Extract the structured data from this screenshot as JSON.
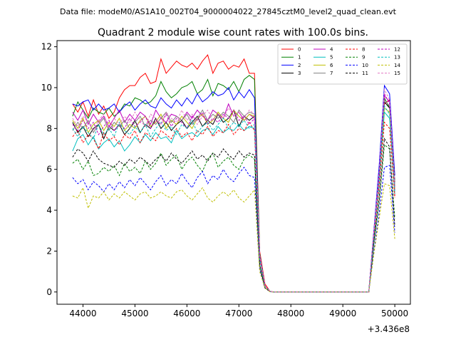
{
  "header": {
    "data_file": "Data file: modeM0/AS1A10_002T04_9000004022_27845cztM0_level2_quad_clean.evt"
  },
  "chart_data": {
    "type": "line",
    "title": "Quadrant 2 module wise count rates with 100.0s bins.",
    "xlabel": "",
    "ylabel": "",
    "offset_label": "+3.436e8",
    "xlim": [
      43500,
      50300
    ],
    "ylim": [
      -0.6,
      12.3
    ],
    "xticks": [
      44000,
      45000,
      46000,
      47000,
      48000,
      49000,
      50000
    ],
    "xtick_labels": [
      "44000",
      "45000",
      "46000",
      "47000",
      "48000",
      "49000",
      "50000"
    ],
    "yticks": [
      0,
      2,
      4,
      6,
      8,
      10,
      12
    ],
    "ytick_labels": [
      "0",
      "2",
      "4",
      "6",
      "8",
      "10",
      "12"
    ],
    "legend_position": "upper-right",
    "x": [
      43800,
      43900,
      44000,
      44100,
      44200,
      44300,
      44400,
      44500,
      44600,
      44700,
      44800,
      44900,
      45000,
      45100,
      45200,
      45300,
      45400,
      45500,
      45600,
      45700,
      45800,
      45900,
      46000,
      46100,
      46200,
      46300,
      46400,
      46500,
      46600,
      46700,
      46800,
      46900,
      47000,
      47100,
      47200,
      47300,
      47400,
      47500,
      47600,
      47700,
      47800,
      47900,
      48000,
      48100,
      48200,
      48300,
      48400,
      48500,
      48600,
      48700,
      48800,
      48900,
      49000,
      49100,
      49200,
      49300,
      49400,
      49500,
      49600,
      49700,
      49800,
      49900,
      50000
    ],
    "series": [
      {
        "name": "0",
        "color": "#ff0000",
        "dash": false,
        "values": [
          9.2,
          8.8,
          9.3,
          8.6,
          9.4,
          8.7,
          9.1,
          8.5,
          8.8,
          9.5,
          9.9,
          10.1,
          10.1,
          10.5,
          10.7,
          10.2,
          10.3,
          11.4,
          10.7,
          11.0,
          11.3,
          11.1,
          11.0,
          11.2,
          10.9,
          11.3,
          11.6,
          10.7,
          11.2,
          11.3,
          10.9,
          11.1,
          11.0,
          11.4,
          10.7,
          10.7,
          2.0,
          0.4,
          0.02,
          0.0,
          0.0,
          0.0,
          0.0,
          0.0,
          0.0,
          0.0,
          0.0,
          0.0,
          0.0,
          0.0,
          0.0,
          0.0,
          0.0,
          0.0,
          0.0,
          0.0,
          0.0,
          0.0,
          3.0,
          6.0,
          9.2,
          9.4,
          4.7
        ]
      },
      {
        "name": "1",
        "color": "#008000",
        "dash": false,
        "values": [
          8.6,
          9.3,
          8.9,
          8.5,
          9.0,
          8.8,
          8.7,
          9.0,
          8.6,
          8.8,
          9.2,
          9.1,
          9.5,
          9.4,
          9.2,
          9.3,
          9.6,
          10.3,
          9.8,
          9.5,
          9.7,
          10.0,
          10.1,
          10.3,
          9.7,
          9.9,
          10.4,
          9.6,
          10.2,
          10.1,
          9.9,
          10.3,
          9.8,
          10.4,
          10.6,
          10.4,
          1.9,
          0.3,
          0.02,
          0.0,
          0.0,
          0.0,
          0.0,
          0.0,
          0.0,
          0.0,
          0.0,
          0.0,
          0.0,
          0.0,
          0.0,
          0.0,
          0.0,
          0.0,
          0.0,
          0.0,
          0.0,
          0.0,
          2.9,
          5.6,
          9.5,
          9.0,
          5.3
        ]
      },
      {
        "name": "2",
        "color": "#0000ff",
        "dash": false,
        "values": [
          9.2,
          9.1,
          9.3,
          9.4,
          8.9,
          9.2,
          8.9,
          9.0,
          9.2,
          8.8,
          9.1,
          9.3,
          8.9,
          9.2,
          9.4,
          9.1,
          9.0,
          9.5,
          9.2,
          9.0,
          9.4,
          9.1,
          9.5,
          9.2,
          9.7,
          9.3,
          9.5,
          9.8,
          9.6,
          9.7,
          10.0,
          9.4,
          9.8,
          9.5,
          9.9,
          9.5,
          1.8,
          0.3,
          0.02,
          0.0,
          0.0,
          0.0,
          0.0,
          0.0,
          0.0,
          0.0,
          0.0,
          0.0,
          0.0,
          0.0,
          0.0,
          0.0,
          0.0,
          0.0,
          0.0,
          0.0,
          0.0,
          0.0,
          3.1,
          6.2,
          10.1,
          9.7,
          5.7
        ]
      },
      {
        "name": "3",
        "color": "#000000",
        "dash": false,
        "values": [
          8.3,
          7.8,
          8.1,
          7.6,
          8.0,
          8.2,
          7.5,
          8.1,
          7.9,
          8.2,
          7.7,
          8.0,
          8.4,
          7.8,
          8.2,
          8.0,
          8.5,
          8.0,
          8.3,
          7.9,
          8.2,
          8.4,
          8.0,
          8.3,
          8.6,
          8.1,
          8.4,
          8.2,
          8.7,
          8.3,
          8.5,
          8.9,
          8.1,
          8.6,
          8.4,
          8.6,
          1.7,
          0.3,
          0.02,
          0.0,
          0.0,
          0.0,
          0.0,
          0.0,
          0.0,
          0.0,
          0.0,
          0.0,
          0.0,
          0.0,
          0.0,
          0.0,
          0.0,
          0.0,
          0.0,
          0.0,
          0.0,
          0.0,
          2.9,
          5.4,
          9.3,
          9.0,
          5.4
        ]
      },
      {
        "name": "4",
        "color": "#bf00bf",
        "dash": false,
        "values": [
          8.8,
          8.4,
          8.9,
          8.2,
          8.7,
          8.3,
          8.6,
          8.1,
          8.5,
          8.9,
          8.3,
          8.7,
          8.4,
          8.8,
          8.6,
          8.2,
          8.9,
          8.5,
          8.3,
          8.7,
          8.6,
          8.4,
          8.8,
          8.5,
          8.9,
          8.6,
          8.4,
          8.9,
          8.7,
          8.5,
          9.2,
          8.6,
          8.8,
          8.4,
          8.7,
          8.5,
          1.8,
          0.3,
          0.02,
          0.0,
          0.0,
          0.0,
          0.0,
          0.0,
          0.0,
          0.0,
          0.0,
          0.0,
          0.0,
          0.0,
          0.0,
          0.0,
          0.0,
          0.0,
          0.0,
          0.0,
          0.0,
          0.0,
          3.0,
          5.8,
          9.6,
          9.3,
          5.1
        ]
      },
      {
        "name": "5",
        "color": "#00bfbf",
        "dash": false,
        "values": [
          6.9,
          7.5,
          7.7,
          7.2,
          7.6,
          7.0,
          7.3,
          7.5,
          7.1,
          7.4,
          6.9,
          7.2,
          7.6,
          7.3,
          7.7,
          7.4,
          7.8,
          7.5,
          7.6,
          7.3,
          7.9,
          7.5,
          7.7,
          7.8,
          7.6,
          7.9,
          8.0,
          7.7,
          8.1,
          7.8,
          8.0,
          7.9,
          8.2,
          7.9,
          8.1,
          8.0,
          1.6,
          0.3,
          0.02,
          0.0,
          0.0,
          0.0,
          0.0,
          0.0,
          0.0,
          0.0,
          0.0,
          0.0,
          0.0,
          0.0,
          0.0,
          0.0,
          0.0,
          0.0,
          0.0,
          0.0,
          0.0,
          0.0,
          2.7,
          5.3,
          8.8,
          8.5,
          4.9
        ]
      },
      {
        "name": "6",
        "color": "#bfbf00",
        "dash": false,
        "values": [
          8.4,
          8.0,
          8.5,
          7.8,
          8.2,
          8.4,
          7.9,
          8.3,
          8.1,
          8.5,
          7.9,
          8.2,
          8.0,
          8.4,
          8.6,
          8.1,
          8.3,
          8.7,
          8.0,
          8.4,
          8.2,
          8.6,
          8.3,
          8.0,
          8.5,
          8.7,
          8.2,
          8.4,
          8.8,
          8.5,
          8.3,
          8.9,
          8.6,
          8.4,
          8.7,
          8.6,
          1.7,
          0.3,
          0.02,
          0.0,
          0.0,
          0.0,
          0.0,
          0.0,
          0.0,
          0.0,
          0.0,
          0.0,
          0.0,
          0.0,
          0.0,
          0.0,
          0.0,
          0.0,
          0.0,
          0.0,
          0.0,
          0.0,
          2.8,
          5.5,
          9.0,
          8.8,
          5.0
        ]
      },
      {
        "name": "7",
        "color": "#808080",
        "dash": false,
        "values": [
          7.9,
          8.3,
          8.0,
          8.4,
          7.8,
          8.2,
          8.5,
          7.9,
          8.3,
          8.1,
          8.4,
          8.0,
          8.3,
          8.6,
          8.1,
          8.4,
          8.2,
          8.5,
          8.8,
          8.3,
          8.6,
          8.4,
          8.7,
          8.2,
          8.5,
          8.9,
          8.4,
          8.7,
          8.5,
          8.8,
          8.6,
          8.3,
          8.9,
          8.6,
          8.8,
          8.7,
          1.7,
          0.3,
          0.02,
          0.0,
          0.0,
          0.0,
          0.0,
          0.0,
          0.0,
          0.0,
          0.0,
          0.0,
          0.0,
          0.0,
          0.0,
          0.0,
          0.0,
          0.0,
          0.0,
          0.0,
          0.0,
          0.0,
          2.8,
          5.6,
          9.4,
          9.1,
          5.2
        ]
      },
      {
        "name": "8",
        "color": "#ff0000",
        "dash": true,
        "values": [
          7.6,
          7.9,
          7.3,
          7.7,
          7.5,
          7.0,
          7.8,
          7.4,
          7.6,
          7.2,
          7.7,
          7.5,
          7.9,
          7.3,
          7.8,
          7.6,
          7.4,
          7.9,
          7.7,
          7.5,
          8.0,
          7.6,
          7.8,
          7.4,
          7.9,
          7.7,
          8.1,
          7.6,
          7.9,
          7.8,
          8.2,
          7.7,
          8.0,
          7.9,
          8.3,
          7.9,
          1.6,
          0.3,
          0.02,
          0.0,
          0.0,
          0.0,
          0.0,
          0.0,
          0.0,
          0.0,
          0.0,
          0.0,
          0.0,
          0.0,
          0.0,
          0.0,
          0.0,
          0.0,
          0.0,
          0.0,
          0.0,
          0.0,
          2.7,
          5.2,
          8.3,
          8.0,
          4.6
        ]
      },
      {
        "name": "9",
        "color": "#008000",
        "dash": true,
        "values": [
          6.3,
          6.5,
          6.0,
          6.4,
          5.7,
          5.8,
          6.1,
          5.9,
          6.2,
          5.7,
          6.3,
          5.9,
          6.1,
          5.8,
          6.4,
          6.0,
          6.3,
          6.8,
          6.2,
          6.5,
          6.7,
          6.0,
          6.4,
          6.6,
          6.2,
          5.9,
          6.5,
          6.8,
          6.1,
          6.4,
          6.6,
          6.2,
          6.0,
          6.5,
          6.7,
          6.5,
          1.3,
          0.2,
          0.01,
          0.0,
          0.0,
          0.0,
          0.0,
          0.0,
          0.0,
          0.0,
          0.0,
          0.0,
          0.0,
          0.0,
          0.0,
          0.0,
          0.0,
          0.0,
          0.0,
          0.0,
          0.0,
          0.0,
          2.4,
          4.4,
          7.2,
          7.0,
          3.6
        ]
      },
      {
        "name": "10",
        "color": "#0000ff",
        "dash": true,
        "values": [
          5.6,
          5.3,
          5.5,
          5.0,
          5.4,
          5.2,
          4.9,
          5.3,
          5.0,
          5.4,
          5.1,
          5.5,
          5.2,
          5.6,
          5.3,
          5.0,
          5.4,
          5.7,
          5.2,
          5.5,
          5.3,
          5.8,
          5.4,
          5.1,
          5.6,
          5.9,
          5.3,
          5.7,
          5.5,
          6.0,
          5.6,
          5.4,
          5.8,
          6.1,
          5.7,
          5.6,
          1.1,
          0.2,
          0.01,
          0.0,
          0.0,
          0.0,
          0.0,
          0.0,
          0.0,
          0.0,
          0.0,
          0.0,
          0.0,
          0.0,
          0.0,
          0.0,
          0.0,
          0.0,
          0.0,
          0.0,
          0.0,
          0.0,
          2.0,
          3.9,
          6.1,
          6.2,
          2.9
        ]
      },
      {
        "name": "11",
        "color": "#000000",
        "dash": true,
        "values": [
          6.6,
          7.0,
          6.8,
          6.4,
          6.9,
          6.5,
          6.3,
          6.2,
          6.1,
          6.4,
          6.2,
          6.5,
          6.3,
          6.6,
          6.4,
          6.2,
          6.5,
          6.7,
          6.4,
          6.8,
          6.5,
          6.3,
          6.6,
          6.9,
          6.5,
          6.7,
          6.4,
          6.8,
          6.6,
          7.0,
          6.7,
          6.5,
          6.9,
          6.6,
          6.8,
          6.7,
          1.3,
          0.2,
          0.01,
          0.0,
          0.0,
          0.0,
          0.0,
          0.0,
          0.0,
          0.0,
          0.0,
          0.0,
          0.0,
          0.0,
          0.0,
          0.0,
          0.0,
          0.0,
          0.0,
          0.0,
          0.0,
          0.0,
          2.5,
          4.6,
          7.5,
          7.1,
          3.2
        ]
      },
      {
        "name": "12",
        "color": "#bf00bf",
        "dash": true,
        "values": [
          8.2,
          7.9,
          8.4,
          8.0,
          8.3,
          7.7,
          8.1,
          8.4,
          7.9,
          8.2,
          8.0,
          8.5,
          8.1,
          8.3,
          8.6,
          8.0,
          8.4,
          8.2,
          8.7,
          8.1,
          8.5,
          8.3,
          8.0,
          8.6,
          8.4,
          8.8,
          8.2,
          8.5,
          8.3,
          8.7,
          8.5,
          8.9,
          8.4,
          8.6,
          8.2,
          8.5,
          1.7,
          0.3,
          0.02,
          0.0,
          0.0,
          0.0,
          0.0,
          0.0,
          0.0,
          0.0,
          0.0,
          0.0,
          0.0,
          0.0,
          0.0,
          0.0,
          0.0,
          0.0,
          0.0,
          0.0,
          0.0,
          0.0,
          2.9,
          5.7,
          9.7,
          9.2,
          5.0
        ]
      },
      {
        "name": "13",
        "color": "#00bfbf",
        "dash": true,
        "values": [
          8.0,
          7.6,
          8.1,
          7.8,
          7.5,
          8.2,
          7.7,
          8.0,
          7.6,
          8.3,
          7.9,
          7.7,
          8.1,
          7.8,
          8.2,
          7.6,
          8.0,
          8.3,
          7.9,
          8.1,
          7.7,
          8.2,
          8.0,
          8.4,
          7.8,
          8.1,
          8.3,
          7.9,
          8.2,
          8.5,
          8.0,
          8.3,
          8.1,
          8.4,
          8.0,
          8.2,
          1.6,
          0.3,
          0.02,
          0.0,
          0.0,
          0.0,
          0.0,
          0.0,
          0.0,
          0.0,
          0.0,
          0.0,
          0.0,
          0.0,
          0.0,
          0.0,
          0.0,
          0.0,
          0.0,
          0.0,
          0.0,
          0.0,
          2.8,
          5.5,
          9.1,
          8.7,
          4.8
        ]
      },
      {
        "name": "14",
        "color": "#bfbf00",
        "dash": true,
        "values": [
          4.7,
          4.6,
          5.1,
          4.1,
          4.7,
          4.6,
          4.9,
          4.5,
          4.8,
          4.6,
          4.9,
          4.7,
          4.5,
          4.8,
          4.9,
          4.6,
          4.7,
          4.9,
          4.7,
          4.6,
          4.9,
          5.0,
          4.7,
          4.5,
          4.8,
          5.1,
          4.6,
          4.4,
          4.7,
          4.9,
          4.7,
          5.0,
          4.6,
          4.4,
          4.7,
          5.0,
          1.0,
          0.2,
          0.01,
          0.0,
          0.0,
          0.0,
          0.0,
          0.0,
          0.0,
          0.0,
          0.0,
          0.0,
          0.0,
          0.0,
          0.0,
          0.0,
          0.0,
          0.0,
          0.0,
          0.0,
          0.0,
          0.0,
          1.9,
          3.6,
          5.3,
          5.2,
          2.6
        ]
      },
      {
        "name": "15",
        "color": "#e377c2",
        "dash": true,
        "values": [
          8.5,
          8.1,
          8.6,
          8.3,
          7.9,
          8.4,
          8.7,
          8.0,
          8.5,
          8.2,
          8.6,
          8.3,
          8.8,
          8.4,
          8.1,
          8.7,
          8.5,
          8.2,
          8.8,
          8.5,
          8.3,
          8.9,
          8.4,
          8.7,
          8.2,
          8.6,
          8.9,
          8.4,
          8.7,
          8.5,
          9.0,
          8.6,
          8.8,
          8.5,
          8.9,
          8.7,
          1.8,
          0.3,
          0.02,
          0.0,
          0.0,
          0.0,
          0.0,
          0.0,
          0.0,
          0.0,
          0.0,
          0.0,
          0.0,
          0.0,
          0.0,
          0.0,
          0.0,
          0.0,
          0.0,
          0.0,
          0.0,
          0.0,
          3.0,
          5.9,
          9.9,
          9.4,
          5.3
        ]
      }
    ]
  }
}
